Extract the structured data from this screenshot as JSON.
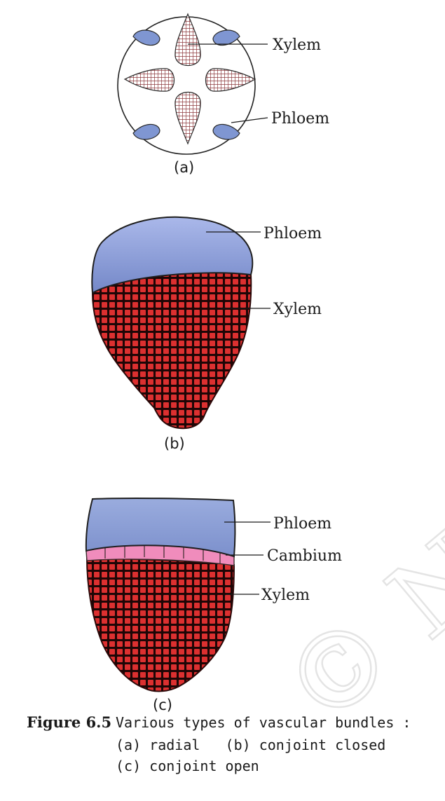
{
  "watermark": "© NCERT  be re",
  "figures": [
    {
      "panel_label": "(a)",
      "labels": [
        "Xylem",
        "Phloem"
      ]
    },
    {
      "panel_label": "(b)",
      "labels": [
        "Phloem",
        "Xylem"
      ]
    },
    {
      "panel_label": "(c)",
      "labels": [
        "Phloem",
        "Cambium",
        "Xylem"
      ]
    }
  ],
  "caption": {
    "figure_number": "Figure 6.5",
    "line1": "Various types of vascular bundles :",
    "line2": "(a) radial   (b) conjoint closed",
    "line3": "(c) conjoint open"
  },
  "colors": {
    "phloem_blue": "#7f96d2",
    "xylem_red": "#d42a2a",
    "xylem_mesh": "#8e3b3f",
    "cambium_pink": "#f08cbc"
  }
}
